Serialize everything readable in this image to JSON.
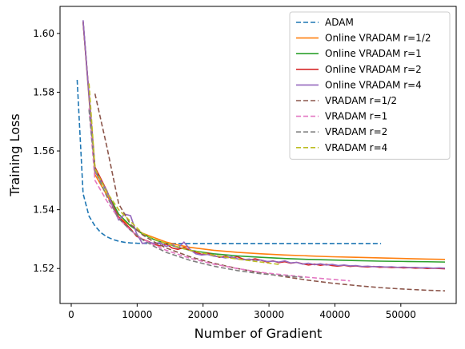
{
  "chart_data": {
    "type": "line",
    "title": "",
    "xlabel": "Number of Gradient",
    "ylabel": "Training Loss",
    "xlim": [
      -1700,
      58400
    ],
    "ylim": [
      1.5081,
      1.6092
    ],
    "xticks": [
      0,
      10000,
      20000,
      30000,
      40000,
      50000
    ],
    "xtick_labels": [
      "0",
      "10000",
      "20000",
      "30000",
      "40000",
      "50000"
    ],
    "yticks": [
      1.52,
      1.54,
      1.56,
      1.58,
      1.6
    ],
    "ytick_labels": [
      "1.52",
      "1.54",
      "1.56",
      "1.58",
      "1.60"
    ],
    "grid": false,
    "legend_position": "top-right",
    "series": [
      {
        "name": "ADAM",
        "color": "#1f77b4",
        "dash": "dashed",
        "x": [
          900,
          1800,
          2700,
          3600,
          4500,
          5400,
          6300,
          7200,
          8100,
          9000,
          10000,
          12000,
          15000,
          20000,
          25000,
          30000,
          35000,
          40000,
          45000,
          47000
        ],
        "y": [
          1.5842,
          1.5455,
          1.5378,
          1.5345,
          1.5322,
          1.5308,
          1.5299,
          1.5293,
          1.5289,
          1.5287,
          1.5286,
          1.5285,
          1.5285,
          1.5285,
          1.5285,
          1.5285,
          1.5285,
          1.5285,
          1.5285,
          1.5285
        ]
      },
      {
        "name": "Online VRADAM r=1/2",
        "color": "#ff7f0e",
        "dash": "solid",
        "x": [
          1800,
          3600,
          5400,
          7200,
          9000,
          10800,
          12600,
          14400,
          16200,
          18000,
          21600,
          25200,
          28800,
          32400,
          36000,
          39600,
          43200,
          46800,
          50400,
          54000,
          56700
        ],
        "y": [
          1.604,
          1.552,
          1.545,
          1.5375,
          1.5345,
          1.532,
          1.5305,
          1.529,
          1.528,
          1.5272,
          1.5262,
          1.5255,
          1.525,
          1.5246,
          1.5243,
          1.524,
          1.5238,
          1.5236,
          1.5234,
          1.5232,
          1.5231
        ]
      },
      {
        "name": "Online VRADAM r=1",
        "color": "#2ca02c",
        "dash": "solid",
        "x": [
          1800,
          3600,
          5400,
          7200,
          9000,
          10800,
          12600,
          14400,
          16200,
          18000,
          21600,
          25200,
          28800,
          32400,
          36000,
          39600,
          43200,
          46800,
          50400,
          54000,
          56700
        ],
        "y": [
          1.604,
          1.554,
          1.546,
          1.5385,
          1.5345,
          1.5318,
          1.5298,
          1.5285,
          1.5272,
          1.5262,
          1.525,
          1.5243,
          1.5238,
          1.5234,
          1.5231,
          1.5229,
          1.5227,
          1.5225,
          1.5224,
          1.5223,
          1.5222
        ]
      },
      {
        "name": "Online VRADAM r=2",
        "color": "#d62728",
        "dash": "solid",
        "x": [
          1800,
          3600,
          5400,
          6300,
          7200,
          8100,
          9000,
          9900,
          10800,
          11700,
          12600,
          13500,
          14400,
          15300,
          16200,
          17100,
          18000,
          18900,
          19800,
          20700,
          21600,
          22500,
          23400,
          24300,
          25200,
          26100,
          27000,
          27900,
          28800,
          29700,
          30600,
          31500,
          32400,
          33300,
          34200,
          35100,
          36000,
          36900,
          37800,
          38700,
          39600,
          40500,
          41400,
          42300,
          43200,
          44100,
          45000,
          45900,
          46800,
          47700,
          48600,
          49500,
          50400,
          51300,
          52200,
          53100,
          54000,
          54900,
          55800,
          56700
        ],
        "y": [
          1.604,
          1.5545,
          1.5465,
          1.5415,
          1.5375,
          1.5355,
          1.5335,
          1.531,
          1.53,
          1.5292,
          1.5282,
          1.5277,
          1.5283,
          1.527,
          1.5265,
          1.5272,
          1.5262,
          1.5255,
          1.5248,
          1.5252,
          1.5245,
          1.5238,
          1.5242,
          1.5236,
          1.524,
          1.5232,
          1.5228,
          1.5233,
          1.5228,
          1.5222,
          1.5226,
          1.522,
          1.5223,
          1.5218,
          1.5221,
          1.5216,
          1.5212,
          1.5215,
          1.5211,
          1.5214,
          1.521,
          1.5208,
          1.5211,
          1.5207,
          1.5209,
          1.5206,
          1.5205,
          1.5207,
          1.5204,
          1.5205,
          1.5203,
          1.5204,
          1.5202,
          1.5203,
          1.5201,
          1.5202,
          1.52,
          1.5201,
          1.52,
          1.5199
        ]
      },
      {
        "name": "Online VRADAM r=4",
        "color": "#9467bd",
        "dash": "solid",
        "x": [
          1800,
          3600,
          5400,
          6300,
          7200,
          8100,
          9000,
          9900,
          10800,
          11700,
          12600,
          13500,
          14400,
          15300,
          16200,
          17100,
          18000,
          18900,
          19800,
          20700,
          21600,
          22500,
          23400,
          24300,
          25200,
          26100,
          27000,
          27900,
          28800,
          29700,
          30600,
          31500,
          32400,
          33300,
          34200,
          35100,
          36000,
          36900,
          37800,
          38700,
          39600,
          40500,
          41400,
          42300,
          43200,
          44100,
          45000,
          45900,
          46800,
          47700,
          48600,
          49500,
          50400,
          51300,
          52200,
          53100,
          54000,
          54900,
          55800,
          56700
        ],
        "y": [
          1.6045,
          1.553,
          1.5465,
          1.541,
          1.5365,
          1.5385,
          1.538,
          1.532,
          1.5285,
          1.529,
          1.5285,
          1.5288,
          1.5275,
          1.5282,
          1.527,
          1.529,
          1.5265,
          1.525,
          1.5246,
          1.5248,
          1.5242,
          1.524,
          1.5236,
          1.524,
          1.5233,
          1.523,
          1.5232,
          1.5227,
          1.5229,
          1.5224,
          1.5225,
          1.5222,
          1.5226,
          1.5219,
          1.5221,
          1.5215,
          1.5218,
          1.5213,
          1.5216,
          1.5212,
          1.5214,
          1.521,
          1.5212,
          1.5209,
          1.521,
          1.5207,
          1.5208,
          1.5206,
          1.5207,
          1.5205,
          1.5206,
          1.5204,
          1.5205,
          1.5203,
          1.5204,
          1.5202,
          1.5203,
          1.5201,
          1.5202,
          1.5201
        ]
      },
      {
        "name": "VRADAM r=1/2",
        "color": "#8c564b",
        "dash": "dashed",
        "x": [
          3600,
          5400,
          7200,
          9000,
          10800,
          12600,
          14400,
          18000,
          21600,
          25200,
          28800,
          32400,
          36000,
          39600,
          43200,
          46800,
          50400,
          54000,
          56700
        ],
        "y": [
          1.5795,
          1.5615,
          1.542,
          1.535,
          1.5315,
          1.529,
          1.527,
          1.524,
          1.5218,
          1.52,
          1.5185,
          1.5172,
          1.516,
          1.515,
          1.5142,
          1.5135,
          1.513,
          1.5126,
          1.5124
        ]
      },
      {
        "name": "VRADAM r=1",
        "color": "#e377c2",
        "dash": "dashed",
        "x": [
          2700,
          3600,
          5400,
          7200,
          9000,
          10800,
          12600,
          14400,
          18000,
          21600,
          25200,
          28800,
          32400,
          36000,
          39600,
          42300
        ],
        "y": [
          1.5745,
          1.55,
          1.543,
          1.537,
          1.533,
          1.53,
          1.528,
          1.5262,
          1.5235,
          1.5215,
          1.52,
          1.5187,
          1.5178,
          1.517,
          1.5163,
          1.5158
        ]
      },
      {
        "name": "VRADAM r=2",
        "color": "#7f7f7f",
        "dash": "dashed",
        "x": [
          2700,
          3600,
          5400,
          7200,
          9000,
          10800,
          12600,
          14400,
          18000,
          21600,
          25200,
          28800,
          32400,
          35100
        ],
        "y": [
          1.574,
          1.5535,
          1.5445,
          1.537,
          1.533,
          1.5298,
          1.5275,
          1.5255,
          1.5228,
          1.5208,
          1.5193,
          1.5182,
          1.5175,
          1.517
        ]
      },
      {
        "name": "VRADAM r=4",
        "color": "#bcbd22",
        "dash": "dashed",
        "x": [
          2700,
          3600,
          5400,
          7200,
          9000,
          10800,
          12600,
          14400,
          18000,
          21600,
          25200,
          28800,
          31500
        ],
        "y": [
          1.583,
          1.554,
          1.546,
          1.54,
          1.536,
          1.532,
          1.53,
          1.5285,
          1.5262,
          1.5245,
          1.5232,
          1.5222,
          1.5214
        ]
      }
    ]
  }
}
